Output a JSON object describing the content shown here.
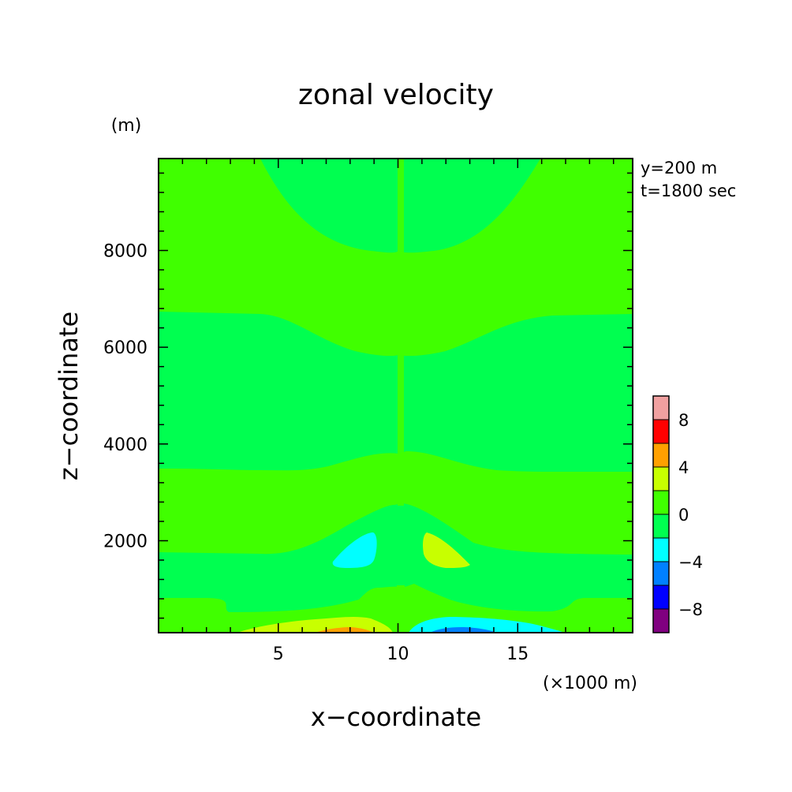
{
  "chart_data": {
    "type": "contour",
    "title": "zonal velocity",
    "xlabel": "x−coordinate",
    "ylabel": "z−coordinate",
    "x_unit": "(×1000 m)",
    "y_unit": "(m)",
    "annotations": [
      "y=200 m",
      "t=1800 sec"
    ],
    "xlim": [
      0,
      19.8
    ],
    "ylim": [
      100,
      9900
    ],
    "x_ticks": [
      5,
      10,
      15
    ],
    "y_ticks": [
      2000,
      4000,
      6000,
      8000
    ],
    "colorbar": {
      "levels": [
        -10,
        -8,
        -6,
        -4,
        -2,
        0,
        2,
        4,
        6,
        8,
        10
      ],
      "tick_labels": [
        "8",
        "4",
        "0",
        "−4",
        "−8"
      ],
      "tick_values": [
        8,
        4,
        0,
        -4,
        -8
      ],
      "colors": [
        "#800080",
        "#0000ff",
        "#0080ff",
        "#00ffff",
        "#00ff50",
        "#40ff00",
        "#c8ff00",
        "#ffa000",
        "#ff0000",
        "#f0a0a0"
      ]
    },
    "regions": [
      {
        "level": "0 to 2",
        "color": "#40ff00",
        "x": [
          0,
          19.8
        ],
        "z": [
          6700,
          9900
        ],
        "note": "upper background, left and right"
      },
      {
        "level": "-2 to 0",
        "color": "#00ff50",
        "x": [
          4.5,
          16
        ],
        "z": [
          8000,
          9900
        ],
        "note": "upper central bowl"
      },
      {
        "level": "-2 to 0",
        "color": "#00ff50",
        "x": [
          0,
          19.8
        ],
        "z": [
          3500,
          6700
        ],
        "note": "middle band"
      },
      {
        "level": "0 to 2",
        "color": "#40ff00",
        "x": [
          0,
          19.8
        ],
        "z": [
          1750,
          3500
        ],
        "note": "lower band"
      },
      {
        "level": "-2 to 0",
        "color": "#00ff50",
        "x": [
          0,
          19.8
        ],
        "z": [
          800,
          1750
        ],
        "note": "low band"
      },
      {
        "level": "0 to 2",
        "color": "#40ff00",
        "x": [
          0,
          19.8
        ],
        "z": [
          500,
          800
        ],
        "note": "near surface band"
      },
      {
        "level": "-4 to -2",
        "color": "#00ffff",
        "x": [
          7.2,
          9.2
        ],
        "z": [
          1350,
          2150
        ],
        "note": "negative cell left of center"
      },
      {
        "level": "2 to 4",
        "color": "#c8ff00",
        "x": [
          11.1,
          13.1
        ],
        "z": [
          1350,
          2150
        ],
        "note": "positive cell right of center"
      },
      {
        "level": "2 to 4",
        "color": "#c8ff00",
        "x": [
          3.5,
          9.7
        ],
        "z": [
          100,
          400
        ],
        "note": "surface positive lobe"
      },
      {
        "level": "4 to 6",
        "color": "#ffa000",
        "x": [
          6.5,
          9.3
        ],
        "z": [
          100,
          250
        ],
        "note": "surface positive core"
      },
      {
        "level": "-4 to -2",
        "color": "#00ffff",
        "x": [
          10.4,
          16.8
        ],
        "z": [
          100,
          400
        ],
        "note": "surface negative lobe"
      },
      {
        "level": "-6 to -4",
        "color": "#0080ff",
        "x": [
          11.2,
          13.8
        ],
        "z": [
          100,
          250
        ],
        "note": "surface negative core"
      }
    ]
  }
}
